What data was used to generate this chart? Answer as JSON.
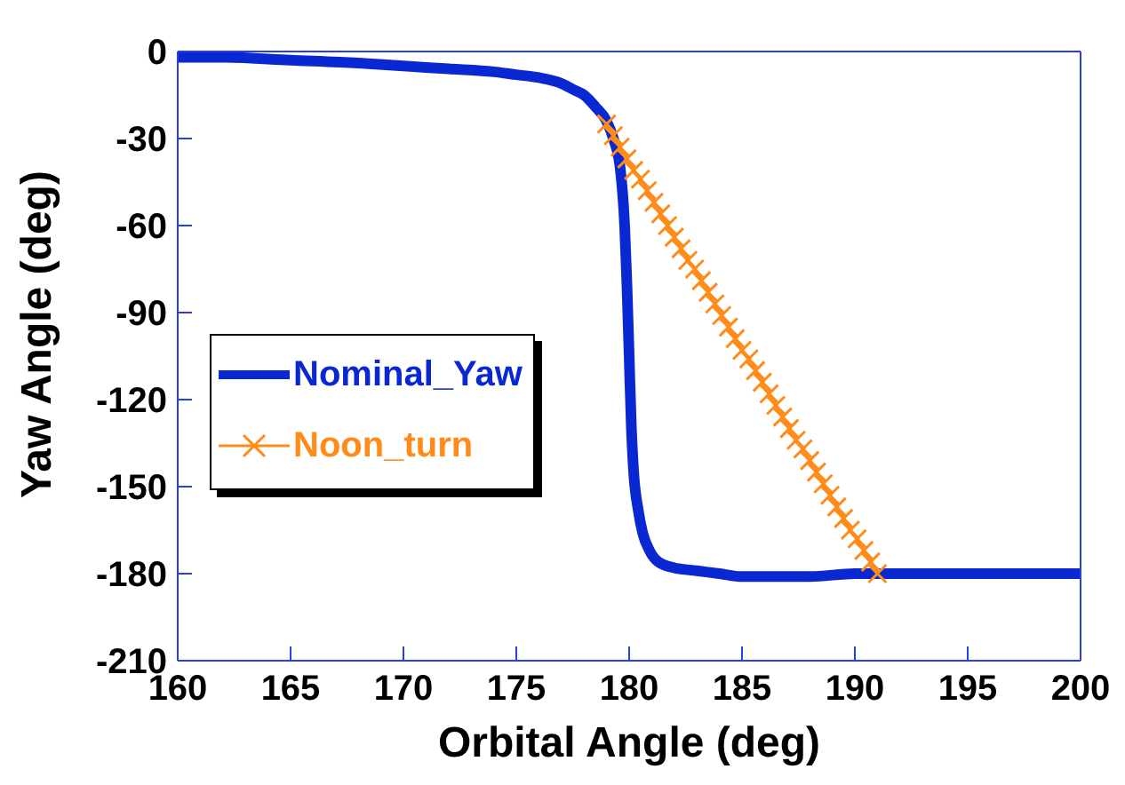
{
  "chart_data": {
    "type": "line",
    "xlabel": "Orbital Angle (deg)",
    "ylabel": "Yaw Angle (deg)",
    "xlim": [
      160,
      200
    ],
    "xticks": [
      160,
      165,
      170,
      175,
      180,
      185,
      190,
      195,
      200
    ],
    "ylim": [
      -210,
      0
    ],
    "yticks": [
      -210,
      -180,
      -150,
      -120,
      -90,
      -60,
      -30,
      0
    ],
    "legend": "left",
    "series": [
      {
        "name": "Nominal_Yaw",
        "color": "#0a28d2",
        "marker": "none",
        "x": [
          160,
          162,
          165,
          168,
          170,
          172,
          174,
          175,
          176,
          177,
          177.5,
          178,
          178.5,
          179,
          179.3,
          179.6,
          179.8,
          179.9,
          180,
          180.1,
          180.2,
          180.4,
          180.6,
          180.9,
          181.3,
          182,
          183,
          184,
          185,
          188,
          190,
          195,
          200
        ],
        "values": [
          -2,
          -2,
          -3,
          -4,
          -5,
          -6,
          -7,
          -8,
          -9,
          -11,
          -13,
          -15,
          -19,
          -24,
          -30,
          -40,
          -60,
          -80,
          -105,
          -130,
          -145,
          -158,
          -166,
          -172,
          -176,
          -178,
          -179,
          -180,
          -181,
          -181,
          -180,
          -180,
          -180
        ]
      },
      {
        "name": "Noon_turn",
        "color": "#ff8c1a",
        "marker": "cross",
        "x": [
          179,
          179.3,
          179.6,
          179.9,
          180.2,
          180.5,
          180.8,
          181.1,
          181.4,
          181.7,
          182,
          182.3,
          182.6,
          182.9,
          183.2,
          183.5,
          183.8,
          184.1,
          184.4,
          184.7,
          185,
          185.3,
          185.6,
          185.9,
          186.2,
          186.5,
          186.8,
          187.1,
          187.4,
          187.7,
          188,
          188.3,
          188.6,
          188.9,
          189.2,
          189.5,
          189.8,
          190.1,
          190.4,
          190.7,
          191
        ],
        "values": [
          -25,
          -29,
          -33,
          -37,
          -41,
          -44,
          -48,
          -52,
          -56,
          -60,
          -64,
          -68,
          -72,
          -75,
          -79,
          -83,
          -87,
          -91,
          -95,
          -99,
          -103,
          -106,
          -110,
          -114,
          -118,
          -122,
          -126,
          -130,
          -134,
          -137,
          -141,
          -145,
          -149,
          -153,
          -157,
          -161,
          -165,
          -168,
          -172,
          -176,
          -180
        ]
      }
    ]
  }
}
